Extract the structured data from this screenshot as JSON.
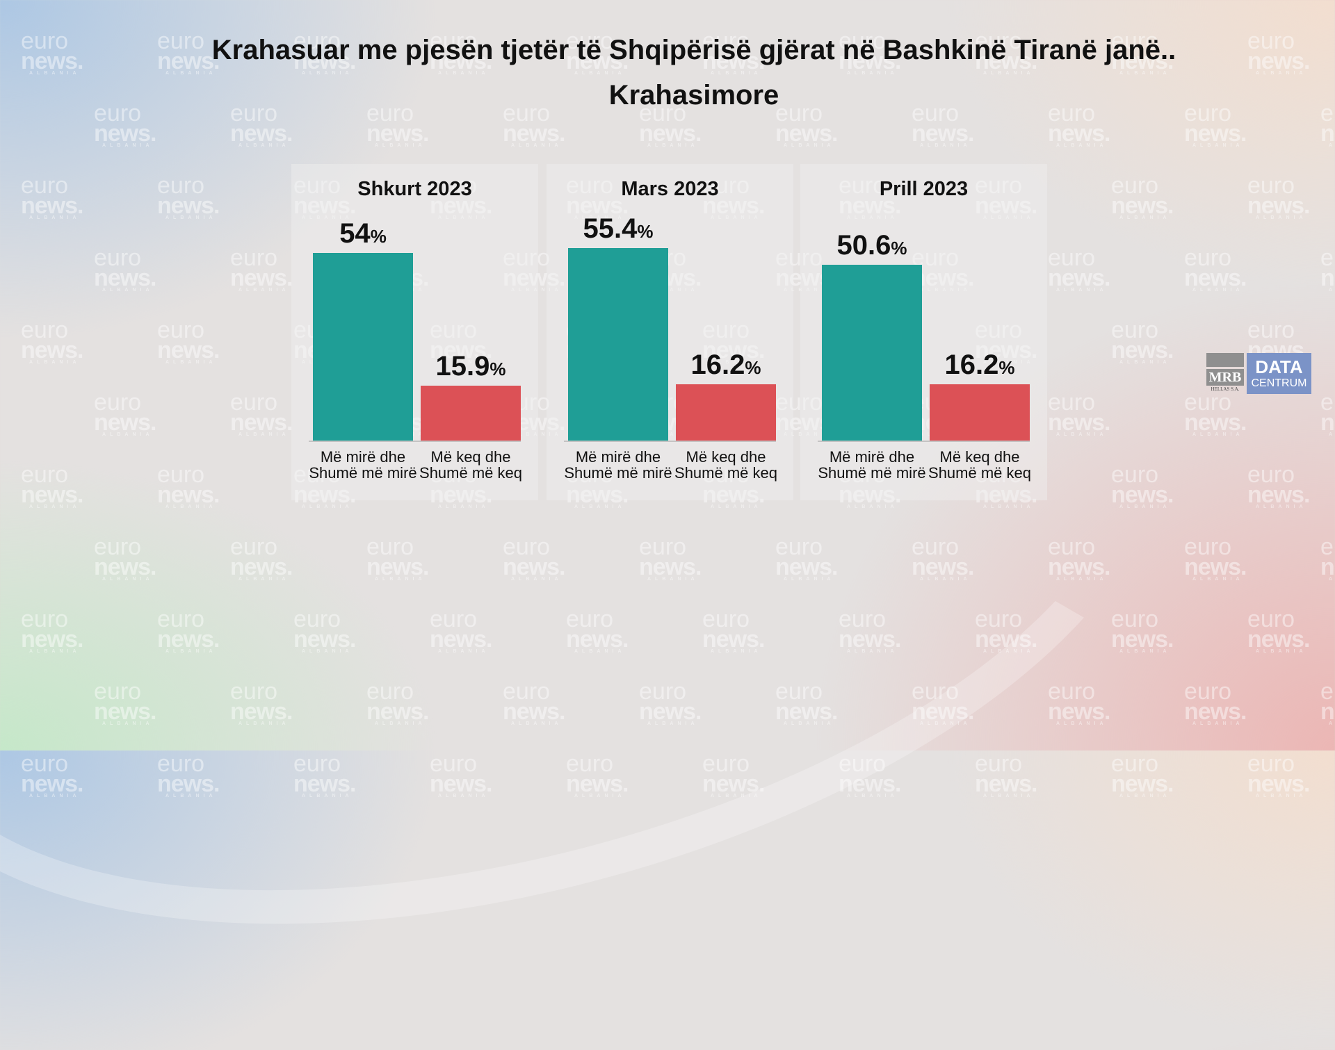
{
  "watermark": {
    "euro": "euro",
    "news": "news.",
    "country": "ALBANIA"
  },
  "title_line1": "Krahasuar me pjesën tjetër të Shqipërisë gjërat në Bashkinë Tiranë janë..",
  "title_line2": "Krahasimore",
  "logo": {
    "mrb": "MRB",
    "hellas": "HELLAS S.A.",
    "data": "DATA",
    "centrum": "CENTRUM"
  },
  "colors": {
    "positive": "#1f9e96",
    "negative": "#dc5156"
  },
  "chart_data": [
    {
      "type": "bar",
      "title": "Shkurt 2023",
      "categories": [
        "Më mirë dhe Shumë më mirë",
        "Më keq dhe Shumë më keq"
      ],
      "values": [
        54,
        15.9
      ],
      "labels": [
        "54",
        "15.9"
      ],
      "unit": "%"
    },
    {
      "type": "bar",
      "title": "Mars 2023",
      "categories": [
        "Më mirë dhe Shumë më mirë",
        "Më keq dhe Shumë më keq"
      ],
      "values": [
        55.4,
        16.2
      ],
      "labels": [
        "55.4",
        "16.2"
      ],
      "unit": "%"
    },
    {
      "type": "bar",
      "title": "Prill 2023",
      "categories": [
        "Më mirë dhe Shumë më mirë",
        "Më keq dhe Shumë më keq"
      ],
      "values": [
        50.6,
        16.2
      ],
      "labels": [
        "50.6",
        "16.2"
      ],
      "unit": "%"
    }
  ]
}
